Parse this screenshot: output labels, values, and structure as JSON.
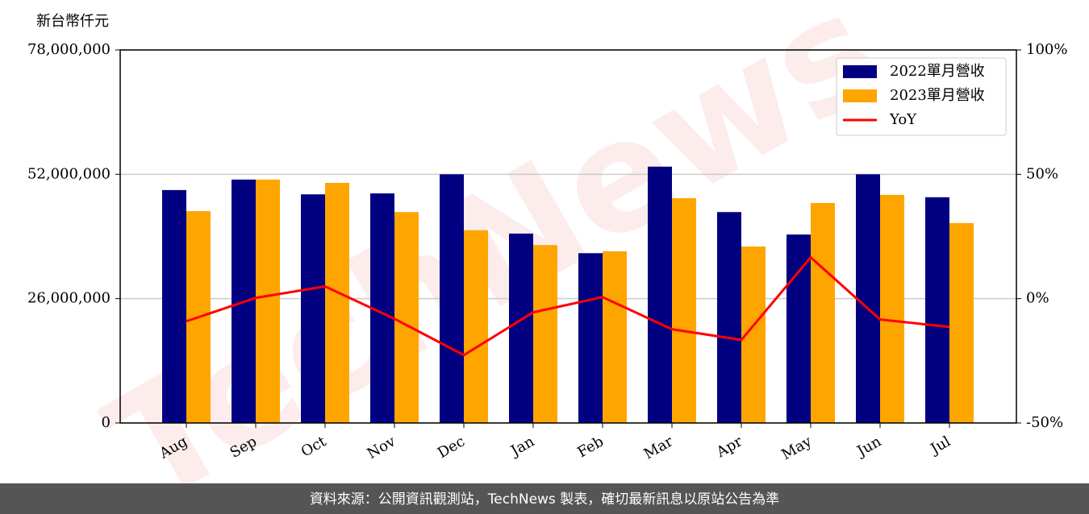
{
  "chart_data": {
    "type": "bar",
    "y_label": "新台幣仟元",
    "categories": [
      "Aug",
      "Sep",
      "Oct",
      "Nov",
      "Dec",
      "Jan",
      "Feb",
      "Mar",
      "Apr",
      "May",
      "Jun",
      "Jul"
    ],
    "series": [
      {
        "name": "2022單月營收",
        "color": "#000080",
        "values": [
          48700000,
          50900000,
          47800000,
          48000000,
          52000000,
          39600000,
          35500000,
          53600000,
          44100000,
          39400000,
          52000000,
          47200000
        ]
      },
      {
        "name": "2023單月營收",
        "color": "#ffa500",
        "values": [
          44300000,
          50900000,
          50200000,
          44100000,
          40300000,
          37200000,
          35900000,
          47000000,
          36900000,
          46000000,
          47700000,
          41800000
        ]
      },
      {
        "name": "YoY",
        "color": "#ff0000",
        "type": "line",
        "axis": "y2",
        "values": [
          -9.1,
          0.3,
          4.9,
          -8.1,
          -22.7,
          -5.5,
          0.6,
          -12.3,
          -16.6,
          16.6,
          -8.4,
          -11.4
        ]
      }
    ],
    "ylim": [
      0,
      78000000
    ],
    "yticks": [
      0,
      {
        "value": 26000000,
        "label": "26,000,000"
      },
      {
        "value": 52000000,
        "label": "52,000,000"
      },
      {
        "value": 78000000,
        "label": "78,000,000"
      }
    ],
    "y2lim": [
      -50,
      100
    ],
    "y2ticks": [
      {
        "value": -50,
        "label": "-50%"
      },
      {
        "value": 0,
        "label": "0%"
      },
      {
        "value": 50,
        "label": "50%"
      },
      {
        "value": 100,
        "label": "100%"
      }
    ],
    "grid": true,
    "legend": "upper right",
    "watermark": "TechNews",
    "footer": "資料來源：公開資訊觀測站，TechNews 製表，確切最新訊息以原站公告為準"
  }
}
